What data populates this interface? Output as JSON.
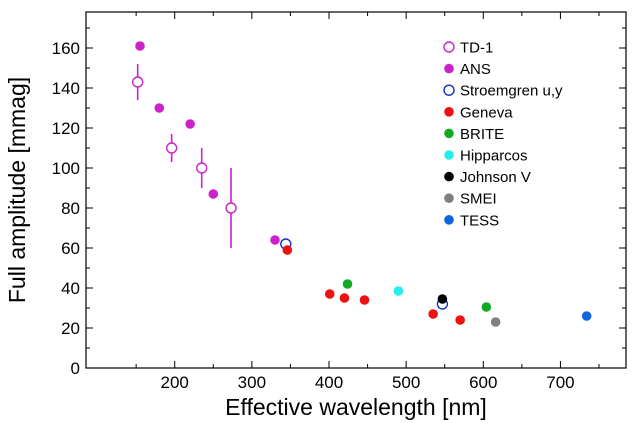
{
  "chart_data": {
    "type": "scatter",
    "xlabel": "Effective wavelength [nm]",
    "ylabel": "Full amplitude [mmag]",
    "xlim": [
      85,
      785
    ],
    "ylim": [
      0,
      178
    ],
    "x_ticks": [
      200,
      300,
      400,
      500,
      600,
      700
    ],
    "y_ticks": [
      0,
      20,
      40,
      60,
      80,
      100,
      120,
      140,
      160
    ],
    "x_tick_labels": [
      "200",
      "300",
      "400",
      "500",
      "600",
      "700"
    ],
    "y_tick_labels": [
      "0",
      "20",
      "40",
      "60",
      "80",
      "100",
      "120",
      "140",
      "160"
    ],
    "grid": false,
    "legend_position": "top-right",
    "series": [
      {
        "name": "TD-1",
        "color": "#cc22cc",
        "marker": "open-circle",
        "points": [
          {
            "x": 152,
            "y": 143,
            "err": 9
          },
          {
            "x": 196,
            "y": 110,
            "err": 7
          },
          {
            "x": 235,
            "y": 100,
            "err": 10
          },
          {
            "x": 273,
            "y": 80,
            "err": 20
          }
        ]
      },
      {
        "name": "ANS",
        "color": "#cc22cc",
        "marker": "filled-circle",
        "points": [
          {
            "x": 155,
            "y": 161
          },
          {
            "x": 180,
            "y": 130
          },
          {
            "x": 220,
            "y": 122
          },
          {
            "x": 250,
            "y": 87
          },
          {
            "x": 330,
            "y": 64
          }
        ]
      },
      {
        "name": "Stroemgren u,y",
        "color": "#1133cc",
        "marker": "open-circle",
        "points": [
          {
            "x": 344,
            "y": 62
          },
          {
            "x": 547,
            "y": 32
          }
        ]
      },
      {
        "name": "Geneva",
        "color": "#ee1111",
        "marker": "filled-circle",
        "points": [
          {
            "x": 346,
            "y": 59
          },
          {
            "x": 401,
            "y": 37
          },
          {
            "x": 420,
            "y": 35
          },
          {
            "x": 446,
            "y": 34
          },
          {
            "x": 535,
            "y": 27
          },
          {
            "x": 570,
            "y": 24
          }
        ]
      },
      {
        "name": "BRITE",
        "color": "#11aa22",
        "marker": "filled-circle",
        "points": [
          {
            "x": 424,
            "y": 42
          },
          {
            "x": 604,
            "y": 30.5
          }
        ]
      },
      {
        "name": "Hipparcos",
        "color": "#22eeee",
        "marker": "filled-circle",
        "points": [
          {
            "x": 490,
            "y": 38.5
          }
        ]
      },
      {
        "name": "Johnson V",
        "color": "#000000",
        "marker": "filled-circle",
        "points": [
          {
            "x": 547,
            "y": 34.5
          }
        ]
      },
      {
        "name": "SMEI",
        "color": "#808080",
        "marker": "filled-circle",
        "points": [
          {
            "x": 616,
            "y": 23
          }
        ]
      },
      {
        "name": "TESS",
        "color": "#1166dd",
        "marker": "filled-circle",
        "points": [
          {
            "x": 734,
            "y": 26
          }
        ]
      }
    ]
  }
}
